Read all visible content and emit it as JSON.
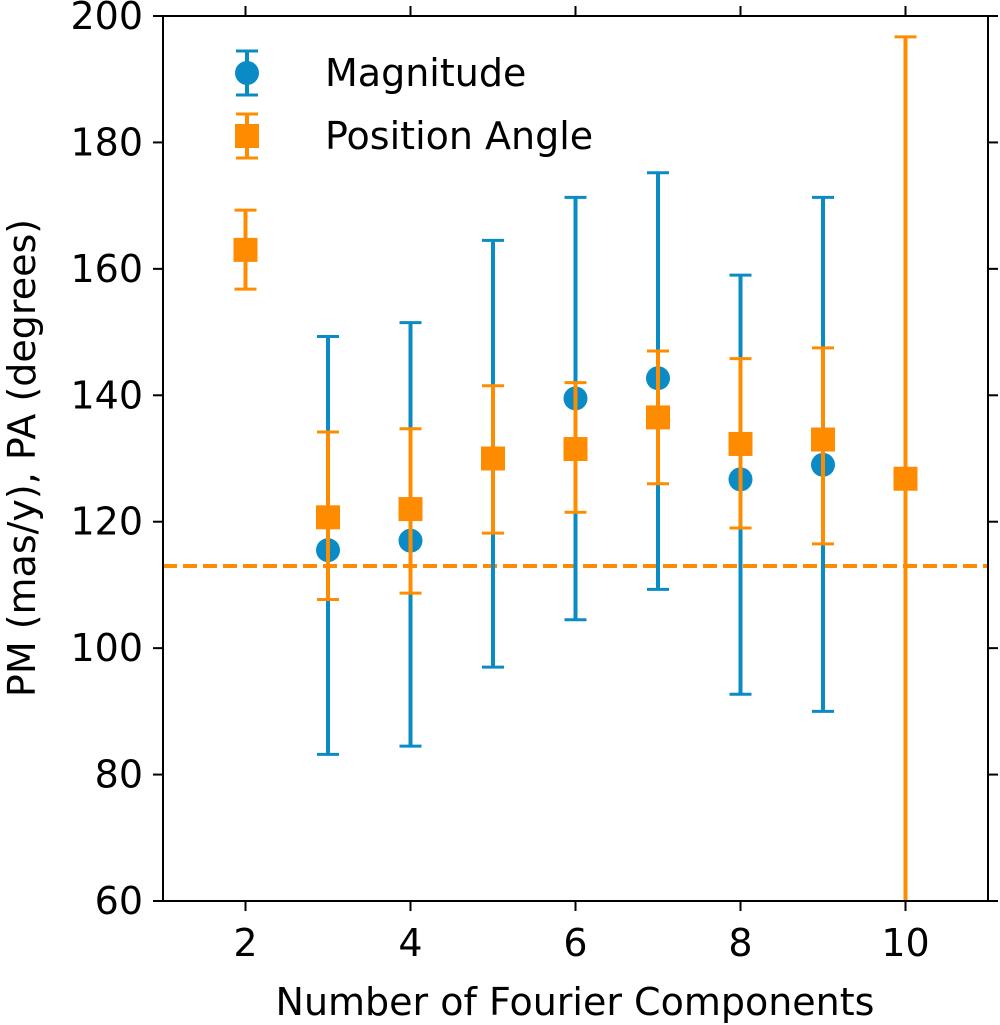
{
  "chart_data": {
    "type": "scatter",
    "xlabel": "Number of Fourier Components",
    "ylabel": "PM (mas/y), PA (degrees)",
    "xlim": [
      1.0,
      11.0
    ],
    "ylim": [
      60,
      200
    ],
    "xticks": [
      2,
      4,
      6,
      8,
      10
    ],
    "yticks": [
      60,
      80,
      100,
      120,
      140,
      160,
      180,
      200
    ],
    "grid": false,
    "legend_position": "top-left",
    "series": [
      {
        "name": "Magnitude",
        "marker": "circle",
        "color": "#0a8bc5",
        "points": [
          {
            "x": 3,
            "y": 115.5,
            "lo": 83.2,
            "hi": 149.3
          },
          {
            "x": 4,
            "y": 117.0,
            "lo": 84.5,
            "hi": 151.5
          },
          {
            "x": 5,
            "y": 130.0,
            "lo": 97.0,
            "hi": 164.5
          },
          {
            "x": 6,
            "y": 139.5,
            "lo": 104.5,
            "hi": 171.3
          },
          {
            "x": 7,
            "y": 142.7,
            "lo": 109.3,
            "hi": 175.2
          },
          {
            "x": 8,
            "y": 126.7,
            "lo": 92.7,
            "hi": 159.0
          },
          {
            "x": 9,
            "y": 129.0,
            "lo": 90.0,
            "hi": 171.3
          }
        ]
      },
      {
        "name": "Position Angle",
        "marker": "square",
        "color": "#ff8c00",
        "points": [
          {
            "x": 2,
            "y": 163.0,
            "lo": 156.8,
            "hi": 169.3
          },
          {
            "x": 3,
            "y": 120.7,
            "lo": 107.7,
            "hi": 134.2
          },
          {
            "x": 4,
            "y": 122.0,
            "lo": 108.7,
            "hi": 134.7
          },
          {
            "x": 5,
            "y": 130.0,
            "lo": 118.2,
            "hi": 141.5
          },
          {
            "x": 6,
            "y": 131.5,
            "lo": 121.5,
            "hi": 142.0
          },
          {
            "x": 7,
            "y": 136.5,
            "lo": 126.0,
            "hi": 147.0
          },
          {
            "x": 8,
            "y": 132.3,
            "lo": 119.0,
            "hi": 145.8
          },
          {
            "x": 9,
            "y": 133.0,
            "lo": 116.5,
            "hi": 147.5
          },
          {
            "x": 10,
            "y": 126.8,
            "lo": 57.0,
            "hi": 196.7
          }
        ]
      }
    ],
    "reference_lines": [
      {
        "orientation": "horizontal",
        "y": 113,
        "style": "dashed",
        "color": "#ff8c00"
      }
    ]
  }
}
